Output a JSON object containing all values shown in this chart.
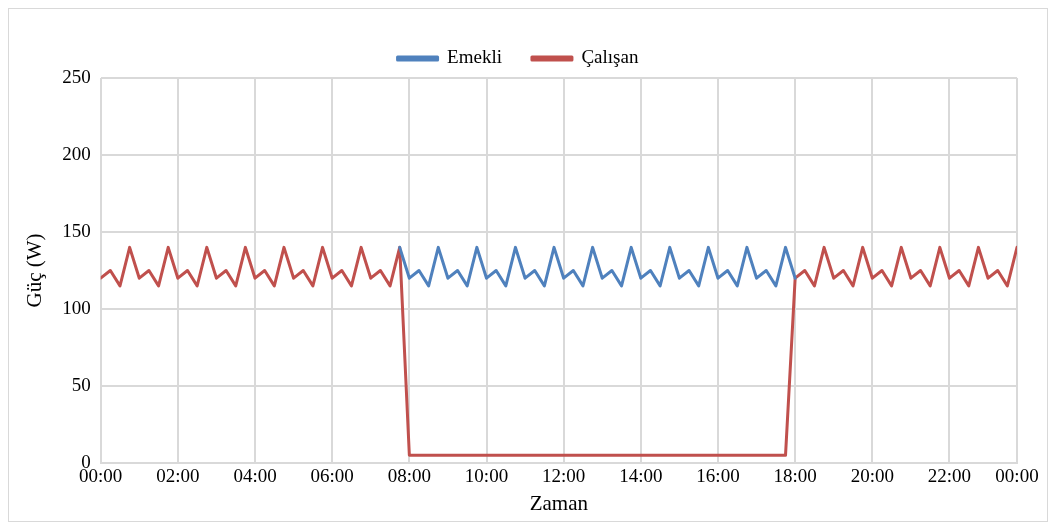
{
  "chart_data": {
    "type": "line",
    "xlabel": "Zaman",
    "ylabel": "Güç (W)",
    "x": [
      0,
      0.25,
      0.5,
      0.75,
      1,
      1.25,
      1.5,
      1.75,
      2,
      2.25,
      2.5,
      2.75,
      3,
      3.25,
      3.5,
      3.75,
      4,
      4.25,
      4.5,
      4.75,
      5,
      5.25,
      5.5,
      5.75,
      6,
      6.25,
      6.5,
      6.75,
      7,
      7.25,
      7.5,
      7.75,
      8,
      8.25,
      8.5,
      8.75,
      9,
      9.25,
      9.5,
      9.75,
      10,
      10.25,
      10.5,
      10.75,
      11,
      11.25,
      11.5,
      11.75,
      12,
      12.25,
      12.5,
      12.75,
      13,
      13.25,
      13.5,
      13.75,
      14,
      14.25,
      14.5,
      14.75,
      15,
      15.25,
      15.5,
      15.75,
      16,
      16.25,
      16.5,
      16.75,
      17,
      17.25,
      17.5,
      17.75,
      18,
      18.25,
      18.5,
      18.75,
      19,
      19.25,
      19.5,
      19.75,
      20,
      20.25,
      20.5,
      20.75,
      21,
      21.25,
      21.5,
      21.75,
      22,
      22.25,
      22.5,
      22.75,
      23,
      23.25,
      23.5,
      23.75
    ],
    "series": [
      {
        "name": "Emekli",
        "color": "#4f81bd",
        "values": [
          null,
          null,
          null,
          null,
          null,
          null,
          null,
          null,
          null,
          null,
          null,
          null,
          null,
          null,
          null,
          null,
          null,
          null,
          null,
          null,
          null,
          null,
          null,
          null,
          null,
          null,
          null,
          null,
          null,
          null,
          null,
          140,
          120,
          125,
          115,
          140,
          120,
          125,
          115,
          140,
          120,
          125,
          115,
          140,
          120,
          125,
          115,
          140,
          120,
          125,
          115,
          140,
          120,
          125,
          115,
          140,
          120,
          125,
          115,
          140,
          120,
          125,
          115,
          140,
          120,
          125,
          115,
          140,
          120,
          125,
          115,
          140,
          120,
          null,
          null,
          null,
          null,
          null,
          null,
          null,
          null,
          null,
          null,
          null,
          null,
          null,
          null,
          null,
          null,
          null,
          null,
          null,
          null,
          null,
          null,
          null
        ]
      },
      {
        "name": "Çalışan",
        "color": "#c0504d",
        "values": [
          120,
          125,
          115,
          140,
          120,
          125,
          115,
          140,
          120,
          125,
          115,
          140,
          120,
          125,
          115,
          140,
          120,
          125,
          115,
          140,
          120,
          125,
          115,
          140,
          120,
          125,
          115,
          140,
          120,
          125,
          115,
          140,
          5,
          5,
          5,
          5,
          5,
          5,
          5,
          5,
          5,
          5,
          5,
          5,
          5,
          5,
          5,
          5,
          5,
          5,
          5,
          5,
          5,
          5,
          5,
          5,
          5,
          5,
          5,
          5,
          5,
          5,
          5,
          5,
          5,
          5,
          5,
          5,
          5,
          5,
          5,
          5,
          120,
          125,
          115,
          140,
          120,
          125,
          115,
          140,
          120,
          125,
          115,
          140,
          120,
          125,
          115,
          140,
          120,
          125,
          115,
          140,
          120,
          125,
          115,
          140
        ]
      }
    ],
    "xlim": [
      0,
      23.75
    ],
    "xticks": [
      {
        "value": 0,
        "label": "00:00"
      },
      {
        "value": 2,
        "label": "02:00"
      },
      {
        "value": 4,
        "label": "04:00"
      },
      {
        "value": 6,
        "label": "06:00"
      },
      {
        "value": 8,
        "label": "08:00"
      },
      {
        "value": 10,
        "label": "10:00"
      },
      {
        "value": 12,
        "label": "12:00"
      },
      {
        "value": 14,
        "label": "14:00"
      },
      {
        "value": 16,
        "label": "16:00"
      },
      {
        "value": 18,
        "label": "18:00"
      },
      {
        "value": 20,
        "label": "20:00"
      },
      {
        "value": 22,
        "label": "22:00"
      },
      {
        "value": 23.75,
        "label": "00:00"
      }
    ],
    "ylim": [
      0,
      250
    ],
    "yticks": [
      0,
      50,
      100,
      150,
      200,
      250
    ],
    "grid": true,
    "legend": "top",
    "marker": "none",
    "line_style": "solid"
  }
}
